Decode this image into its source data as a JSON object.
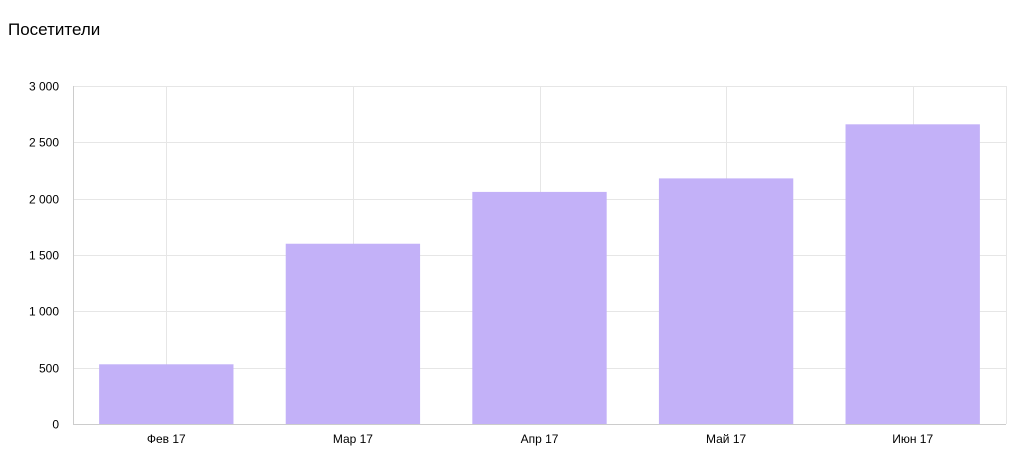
{
  "chart_data": {
    "type": "bar",
    "title": "Посетители",
    "categories": [
      "Фев 17",
      "Мар 17",
      "Апр 17",
      "Май 17",
      "Июн 17"
    ],
    "values": [
      530,
      1600,
      2060,
      2180,
      2660
    ],
    "ylim": [
      0,
      3000
    ],
    "yticks": [
      0,
      500,
      1000,
      1500,
      2000,
      2500,
      3000
    ],
    "ytick_labels": [
      "0",
      "500",
      "1 000",
      "1 500",
      "2 000",
      "2 500",
      "3 000"
    ],
    "xlabel": "",
    "ylabel": "",
    "grid": true,
    "legend": "none",
    "colors": {
      "bar": "#c3b1f8",
      "grid": "#e6e6e6",
      "axis": "#cccccc",
      "text": "#000000"
    }
  }
}
